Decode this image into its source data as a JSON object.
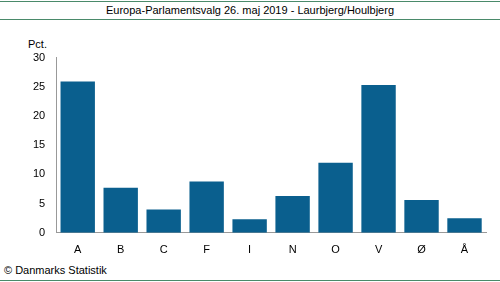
{
  "chart_data": {
    "type": "bar",
    "title": "Europa-Parlamentsvalg 26. maj 2019 - Laurbjerg/Houlbjerg",
    "ylabel": "Pct.",
    "source": "© Danmarks Statistik",
    "categories": [
      "A",
      "B",
      "C",
      "F",
      "I",
      "N",
      "O",
      "V",
      "Ø",
      "Å"
    ],
    "values": [
      25.9,
      7.7,
      4.0,
      8.8,
      2.3,
      6.3,
      12.0,
      25.3,
      5.6,
      2.5
    ],
    "color": "#0a5f8e",
    "ylim": [
      0,
      30
    ],
    "yticks": [
      0,
      5,
      10,
      15,
      20,
      25,
      30
    ],
    "grid": false
  }
}
